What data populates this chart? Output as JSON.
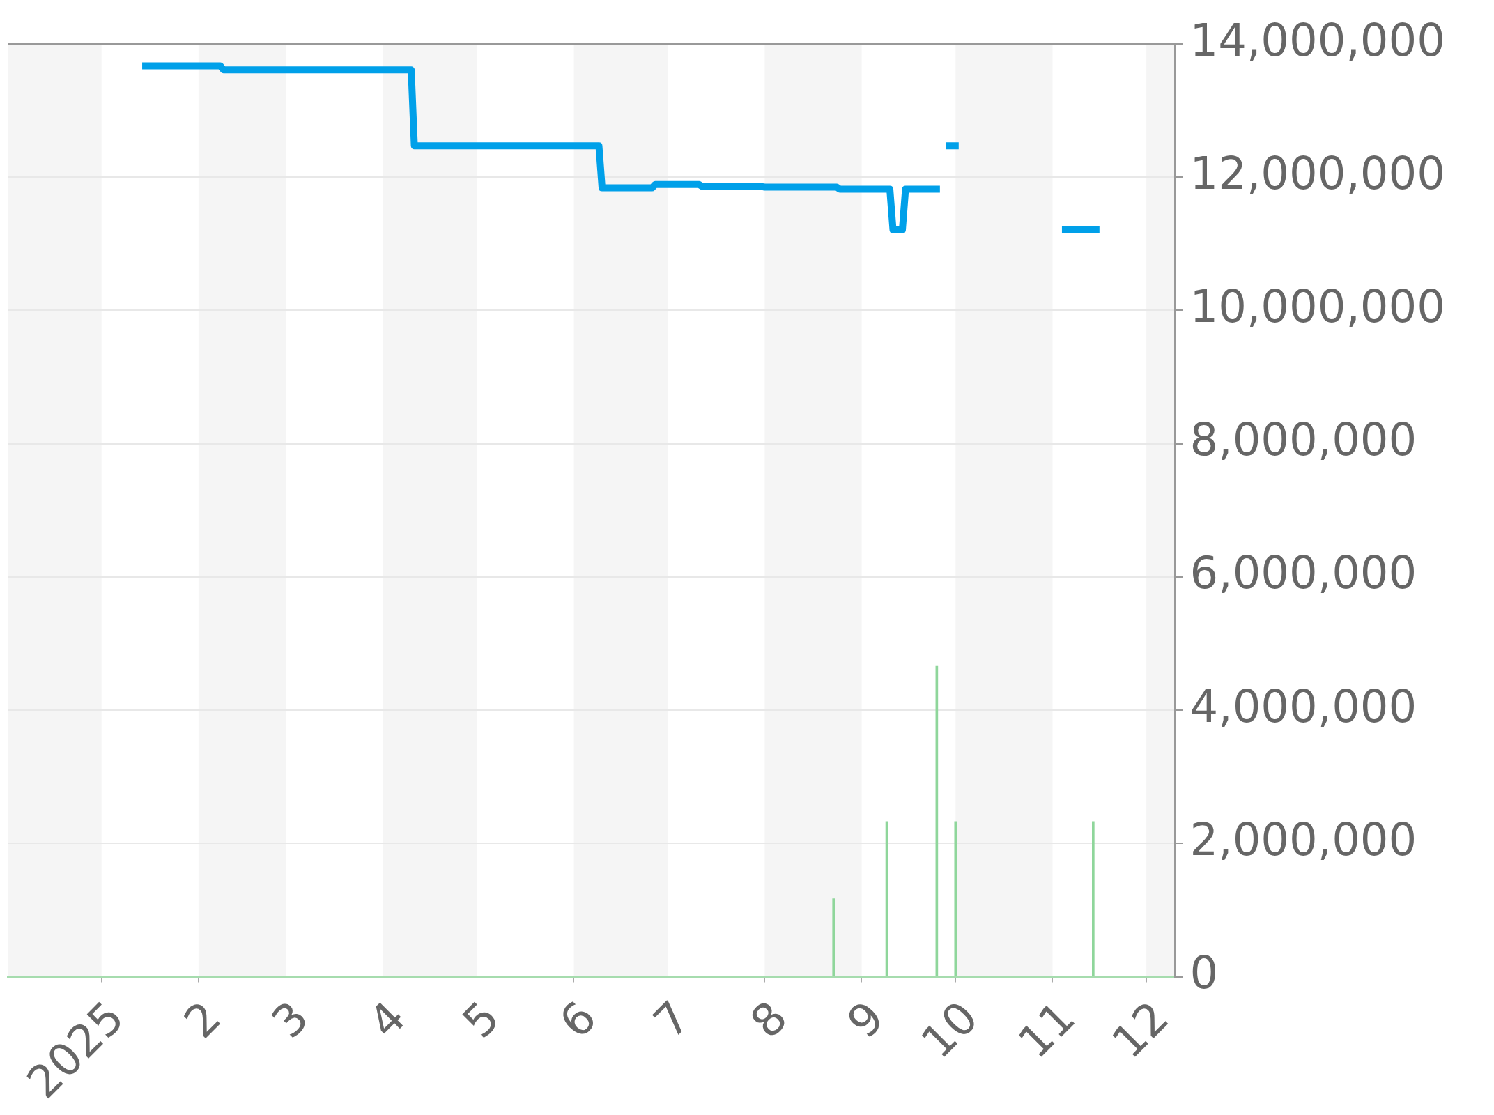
{
  "chart_data": {
    "type": "line",
    "series": [
      {
        "color": "#00a0e9",
        "x": [
          "2025-01-14",
          "2025-02-08",
          "2025-02-09",
          "2025-04-10",
          "2025-04-11",
          "2025-06-09",
          "2025-06-10",
          "2025-06-26",
          "2025-06-27",
          "2025-07-11",
          "2025-07-12",
          "2025-07-31",
          "2025-08-01",
          "2025-08-24",
          "2025-08-25",
          "2025-09-10",
          "2025-09-11",
          "2025-09-14",
          "2025-09-15",
          "2025-09-26",
          "2025-09-27",
          "2025-09-28",
          "2025-10-02",
          "2025-10-15",
          "2025-11-04",
          "2025-11-16"
        ],
        "values": [
          13670000,
          13670000,
          13610000,
          13610000,
          12470000,
          12470000,
          11840000,
          11840000,
          11890000,
          11890000,
          11860000,
          11860000,
          11850000,
          11850000,
          11820000,
          11820000,
          11210000,
          11210000,
          11820000,
          11820000,
          null,
          12470000,
          12470000,
          null,
          11210000,
          11210000
        ]
      },
      {
        "type": "bar",
        "color": "#8fd69b",
        "x": [
          "2025-08-23",
          "2025-09-09",
          "2025-09-25",
          "2025-10-01",
          "2025-11-14"
        ],
        "values": [
          1170000,
          2330000,
          4670000,
          2330000,
          2330000
        ]
      }
    ],
    "xlim": [
      "2024-12-02",
      "2025-12-10"
    ],
    "xticks": [
      {
        "value": "2025-01-01",
        "label": "2025"
      },
      {
        "value": "2025-02-01",
        "label": "2"
      },
      {
        "value": "2025-03-01",
        "label": "3"
      },
      {
        "value": "2025-04-01",
        "label": "4"
      },
      {
        "value": "2025-05-01",
        "label": "5"
      },
      {
        "value": "2025-06-01",
        "label": "6"
      },
      {
        "value": "2025-07-01",
        "label": "7"
      },
      {
        "value": "2025-08-01",
        "label": "8"
      },
      {
        "value": "2025-09-01",
        "label": "9"
      },
      {
        "value": "2025-10-01",
        "label": "10"
      },
      {
        "value": "2025-11-01",
        "label": "11"
      },
      {
        "value": "2025-12-01",
        "label": "12"
      }
    ],
    "ylim": [
      0,
      14000000
    ],
    "yticks": [
      0,
      {
        "value": 2000000,
        "label": "2,000,000"
      },
      {
        "value": 4000000,
        "label": "4,000,000"
      },
      {
        "value": 6000000,
        "label": "6,000,000"
      },
      {
        "value": 8000000,
        "label": "8,000,000"
      },
      {
        "value": 10000000,
        "label": "10,000,000"
      },
      {
        "value": 12000000,
        "label": "12,000,000"
      },
      {
        "value": 14000000,
        "label": "14,000,000"
      }
    ],
    "grid": "y",
    "marker": "none",
    "line_style": "solid",
    "bands": [
      {
        "axis": "x",
        "from": "2024-12-02",
        "to": "2025-01-01",
        "color": "#f5f5f5"
      },
      {
        "axis": "x",
        "from": "2025-02-01",
        "to": "2025-03-01",
        "color": "#f5f5f5"
      },
      {
        "axis": "x",
        "from": "2025-04-01",
        "to": "2025-05-01",
        "color": "#f5f5f5"
      },
      {
        "axis": "x",
        "from": "2025-06-01",
        "to": "2025-07-01",
        "color": "#f5f5f5"
      },
      {
        "axis": "x",
        "from": "2025-08-01",
        "to": "2025-09-01",
        "color": "#f5f5f5"
      },
      {
        "axis": "x",
        "from": "2025-10-01",
        "to": "2025-11-01",
        "color": "#f5f5f5"
      },
      {
        "axis": "x",
        "from": "2025-12-01",
        "to": "2025-12-10",
        "color": "#f5f5f5"
      }
    ]
  }
}
